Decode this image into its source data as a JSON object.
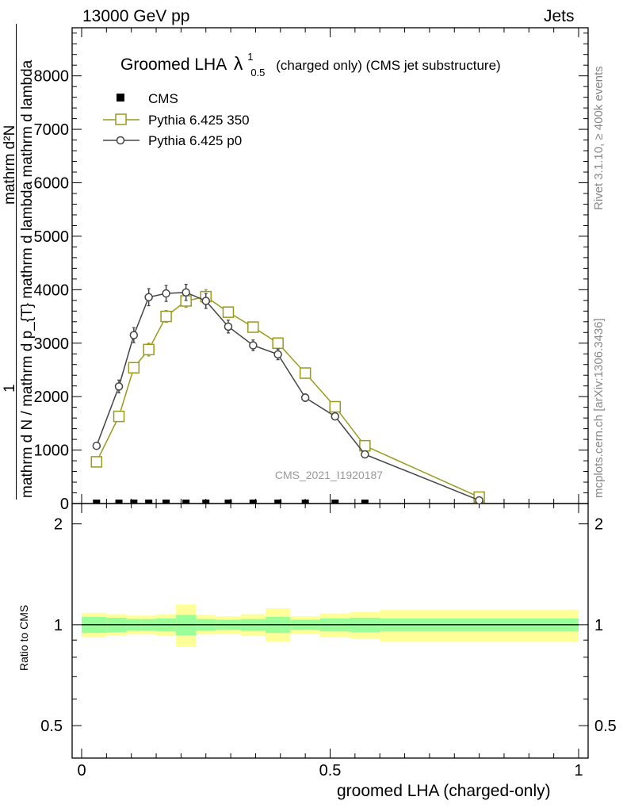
{
  "header": {
    "left": "13000 GeV pp",
    "right": "Jets"
  },
  "side_labels": {
    "rivet": "Rivet 3.1.10, ≥ 400k events",
    "mcplots": "mcplots.cern.ch [arXiv:1306.3436]"
  },
  "chart_data": {
    "type": "line",
    "title_main": "Groomed LHA",
    "title_symbol": "λ",
    "title_sup": "1",
    "title_sub": "0.5",
    "title_rest": "(charged only) (CMS jet substructure)",
    "watermark": "CMS_2021_I1920187",
    "xlabel": "groomed LHA (charged-only)",
    "ylabel_fraction_left": "1",
    "ylabel_numerator": "mathrm d²N",
    "ylabel_denominator": "mathrm d N / mathrm d p_{T} mathrm d lambda mathrm d lambda",
    "ratio_ylabel": "Ratio to CMS",
    "xlim": [
      0,
      1
    ],
    "ylim": [
      0,
      8900
    ],
    "ratio_ylim": [
      0.4,
      2.3
    ],
    "x_ticks": [
      "0",
      "0.5",
      "1"
    ],
    "y_ticks": [
      "0",
      "1000",
      "2000",
      "3000",
      "4000",
      "5000",
      "6000",
      "7000",
      "8000"
    ],
    "ratio_ticks": [
      "0.5",
      "1",
      "2"
    ],
    "legend_position": "top-left",
    "series": [
      {
        "name": "CMS",
        "color": "#000000",
        "marker": "filled-square",
        "x": [
          0.03,
          0.075,
          0.105,
          0.135,
          0.17,
          0.21,
          0.25,
          0.295,
          0.345,
          0.395,
          0.45,
          0.51,
          0.57
        ],
        "y": [
          0,
          0,
          0,
          0,
          0,
          0,
          0,
          0,
          0,
          0,
          0,
          0,
          0
        ]
      },
      {
        "name": "Pythia 6.425 350",
        "color": "#9a9a1e",
        "marker": "open-square",
        "x": [
          0.03,
          0.075,
          0.105,
          0.135,
          0.17,
          0.21,
          0.25,
          0.295,
          0.345,
          0.395,
          0.45,
          0.51,
          0.57,
          0.8
        ],
        "y": [
          780,
          1630,
          2540,
          2880,
          3500,
          3790,
          3870,
          3580,
          3300,
          3000,
          2440,
          1810,
          1080,
          120
        ],
        "err": [
          40,
          60,
          100,
          120,
          110,
          120,
          130,
          90,
          80,
          80,
          70,
          60,
          40,
          20
        ]
      },
      {
        "name": "Pythia 6.425 p0",
        "color": "#444444",
        "marker": "open-circle",
        "x": [
          0.03,
          0.075,
          0.105,
          0.135,
          0.17,
          0.21,
          0.25,
          0.295,
          0.345,
          0.395,
          0.45,
          0.51,
          0.57,
          0.8
        ],
        "y": [
          1080,
          2190,
          3150,
          3860,
          3930,
          3950,
          3790,
          3310,
          2960,
          2790,
          1980,
          1630,
          920,
          60
        ],
        "err": [
          40,
          120,
          140,
          160,
          150,
          150,
          140,
          120,
          100,
          100,
          70,
          50,
          40,
          20
        ]
      }
    ],
    "ratio_bands": {
      "edges": [
        0,
        0.05,
        0.09,
        0.12,
        0.15,
        0.19,
        0.23,
        0.27,
        0.32,
        0.37,
        0.42,
        0.48,
        0.54,
        0.6,
        1.0
      ],
      "green_lo": [
        0.945,
        0.95,
        0.96,
        0.96,
        0.955,
        0.93,
        0.96,
        0.965,
        0.96,
        0.945,
        0.965,
        0.955,
        0.95,
        0.955
      ],
      "green_hi": [
        1.055,
        1.05,
        1.04,
        1.04,
        1.045,
        1.07,
        1.04,
        1.035,
        1.04,
        1.055,
        1.035,
        1.045,
        1.05,
        1.045
      ],
      "yellow_lo": [
        0.92,
        0.93,
        0.935,
        0.935,
        0.925,
        0.86,
        0.935,
        0.94,
        0.925,
        0.89,
        0.94,
        0.92,
        0.91,
        0.89
      ],
      "yellow_hi": [
        1.085,
        1.075,
        1.065,
        1.065,
        1.075,
        1.15,
        1.07,
        1.06,
        1.075,
        1.12,
        1.06,
        1.08,
        1.09,
        1.11
      ]
    }
  }
}
